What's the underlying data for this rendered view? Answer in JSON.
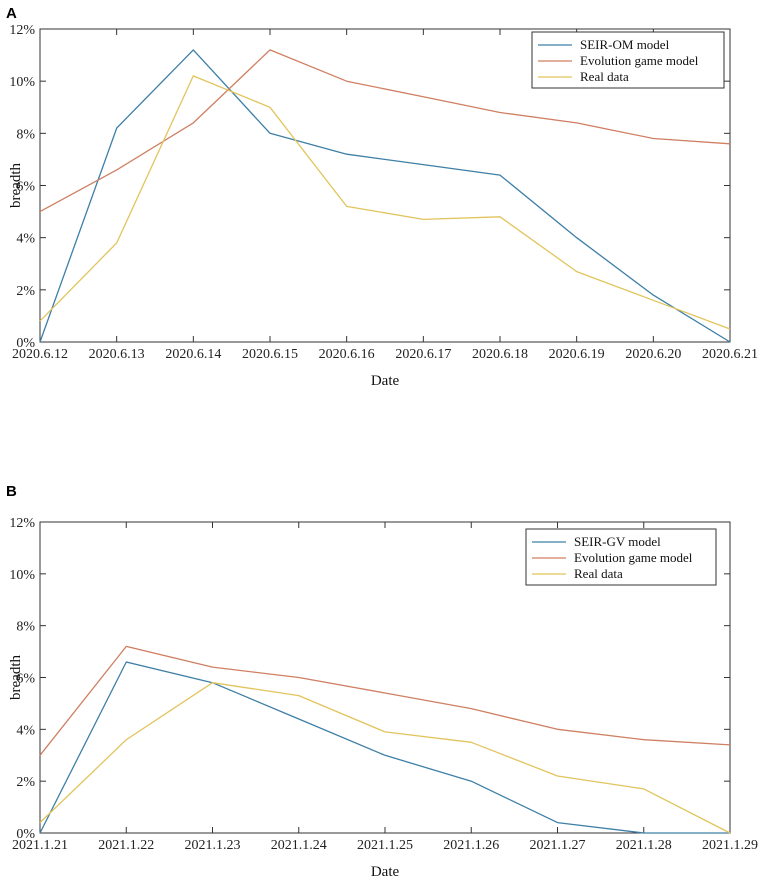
{
  "chart_data": [
    {
      "panel": "A",
      "type": "line",
      "categories": [
        "2020.6.12",
        "2020.6.13",
        "2020.6.14",
        "2020.6.15",
        "2020.6.16",
        "2020.6.17",
        "2020.6.18",
        "2020.6.19",
        "2020.6.20",
        "2020.6.21"
      ],
      "xlabel": "Date",
      "ylabel": "breadth",
      "ylim": [
        0,
        12
      ],
      "yticks": [
        "0%",
        "2%",
        "4%",
        "6%",
        "8%",
        "10%",
        "12%"
      ],
      "legend_position": "top-right",
      "series": [
        {
          "name": "SEIR-OM model",
          "color": "#3d7fa6",
          "values": [
            0.0,
            8.2,
            11.2,
            8.0,
            7.2,
            6.8,
            6.4,
            4.0,
            1.8,
            0.0
          ]
        },
        {
          "name": "Evolution game model",
          "color": "#cf7f62",
          "values": [
            5.0,
            6.6,
            8.4,
            11.2,
            10.0,
            9.4,
            8.8,
            8.4,
            7.8,
            7.6
          ]
        },
        {
          "name": "Real data",
          "color": "#e1c45c",
          "values": [
            0.8,
            3.8,
            10.2,
            9.0,
            5.2,
            4.7,
            4.8,
            2.7,
            1.6,
            0.5
          ]
        }
      ]
    },
    {
      "panel": "B",
      "type": "line",
      "categories": [
        "2021.1.21",
        "2021.1.22",
        "2021.1.23",
        "2021.1.24",
        "2021.1.25",
        "2021.1.26",
        "2021.1.27",
        "2021.1.28",
        "2021.1.29"
      ],
      "xlabel": "Date",
      "ylabel": "breadth",
      "ylim": [
        0,
        12
      ],
      "yticks": [
        "0%",
        "2%",
        "4%",
        "6%",
        "8%",
        "10%",
        "12%"
      ],
      "legend_position": "top-right",
      "series": [
        {
          "name": "SEIR-GV model",
          "color": "#3d7fa6",
          "values": [
            0.0,
            6.6,
            5.8,
            4.4,
            3.0,
            2.0,
            0.4,
            0.0,
            0.0
          ]
        },
        {
          "name": "Evolution game model",
          "color": "#cf7f62",
          "values": [
            3.0,
            7.2,
            6.4,
            6.0,
            5.4,
            4.8,
            4.0,
            3.6,
            3.4
          ]
        },
        {
          "name": "Real data",
          "color": "#e1c45c",
          "values": [
            0.4,
            3.6,
            5.8,
            5.3,
            3.9,
            3.5,
            2.2,
            1.7,
            0.0
          ]
        }
      ]
    }
  ]
}
